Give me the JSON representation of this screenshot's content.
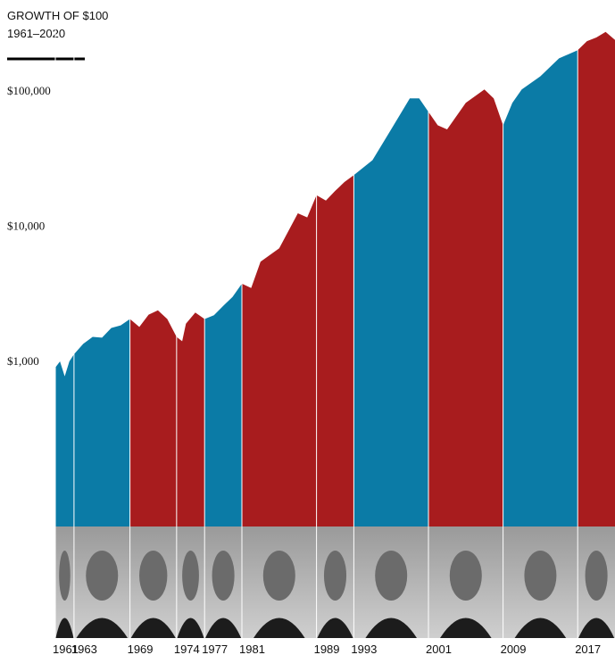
{
  "chart_data": {
    "type": "area",
    "title": "GROWTH OF $100",
    "subtitle": "1961–2020",
    "log_scale": true,
    "xlim": [
      1961,
      2021
    ],
    "ylim": [
      60,
      300000
    ],
    "yticks": [
      {
        "value": 1000,
        "label": "$1,000"
      },
      {
        "value": 10000,
        "label": "$10,000"
      },
      {
        "value": 100000,
        "label": "$100,000"
      }
    ],
    "xticks": [
      1961,
      1963,
      1969,
      1974,
      1977,
      1981,
      1989,
      1993,
      2001,
      2009,
      2017
    ],
    "series": [
      {
        "color": "#0b7ba6",
        "x": [
          1961,
          1961.5,
          1962,
          1962.5,
          1963
        ],
        "values": [
          900,
          1000,
          775,
          1000,
          1130
        ]
      },
      {
        "color": "#0b7ba6",
        "x": [
          1963,
          1964,
          1965,
          1966,
          1967,
          1968,
          1969
        ],
        "values": [
          1130,
          1350,
          1520,
          1500,
          1770,
          1850,
          2060
        ]
      },
      {
        "color": "#a81c1e",
        "x": [
          1969,
          1970,
          1971,
          1972,
          1973,
          1974
        ],
        "values": [
          2060,
          1800,
          2220,
          2390,
          2060,
          1520
        ]
      },
      {
        "color": "#a81c1e",
        "x": [
          1974,
          1974.6,
          1975,
          1976,
          1977
        ],
        "values": [
          1520,
          1410,
          1900,
          2300,
          2060
        ]
      },
      {
        "color": "#0b7ba6",
        "x": [
          1977,
          1978,
          1979,
          1980,
          1981
        ],
        "values": [
          2060,
          2200,
          2580,
          3000,
          3760
        ]
      },
      {
        "color": "#a81c1e",
        "x": [
          1981,
          1982,
          1983,
          1985,
          1987,
          1988,
          1989
        ],
        "values": [
          3760,
          3500,
          5470,
          6870,
          12500,
          11650,
          17000
        ]
      },
      {
        "color": "#a81c1e",
        "x": [
          1989,
          1990,
          1991,
          1992,
          1993
        ],
        "values": [
          17000,
          15500,
          18300,
          21300,
          23900
        ]
      },
      {
        "color": "#0b7ba6",
        "x": [
          1993,
          1995,
          1997,
          1999,
          2000,
          2001
        ],
        "values": [
          23900,
          30900,
          52200,
          88400,
          88400,
          70300
        ]
      },
      {
        "color": "#a81c1e",
        "x": [
          2001,
          2002,
          2003,
          2005,
          2007,
          2008,
          2009
        ],
        "values": [
          70300,
          56000,
          52200,
          82000,
          103000,
          88400,
          56000
        ]
      },
      {
        "color": "#0b7ba6",
        "x": [
          2009,
          2010,
          2011,
          2013,
          2015,
          2017
        ],
        "values": [
          56000,
          82000,
          103000,
          129000,
          175000,
          201000
        ]
      },
      {
        "color": "#a81c1e",
        "x": [
          2017,
          2018,
          2019,
          2020,
          2021
        ],
        "values": [
          201000,
          235000,
          250000,
          275000,
          240000
        ]
      }
    ]
  }
}
